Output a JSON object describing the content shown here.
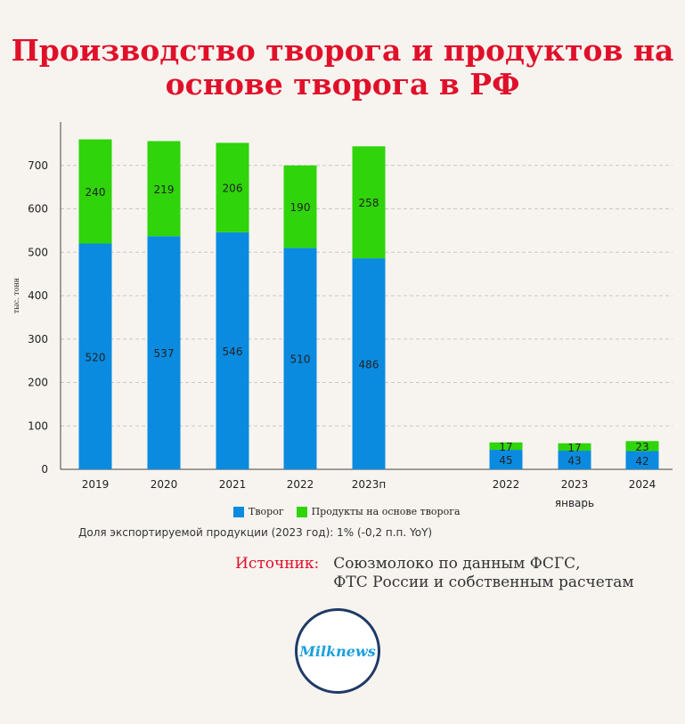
{
  "title": [
    "Производство творога и продуктов на",
    "основе творога в РФ"
  ],
  "colors": {
    "title": "#e0102a",
    "tvorog": "#0a8be0",
    "products": "#2fd40a",
    "grid": "#c8c8c8",
    "logo_ring": "#1f3a66",
    "logo_text": "#1aa0de"
  },
  "chart_data": {
    "type": "bar",
    "stacked": true,
    "ylabel": "тыс. тонн",
    "ylim": [
      0,
      800
    ],
    "yticks": [
      0,
      100,
      200,
      300,
      400,
      500,
      600,
      700
    ],
    "grid": true,
    "groups": [
      {
        "categories": [
          "2019",
          "2020",
          "2021",
          "2022",
          "2023п"
        ],
        "group_label": ""
      },
      {
        "categories": [
          "2022",
          "2023",
          "2024"
        ],
        "group_label": "январь"
      }
    ],
    "categories": [
      "2019",
      "2020",
      "2021",
      "2022",
      "2023п",
      "2022",
      "2023",
      "2024"
    ],
    "series": [
      {
        "name": "Творог",
        "values": [
          520,
          537,
          546,
          510,
          486,
          45,
          43,
          42
        ]
      },
      {
        "name": "Продукты на основе творога",
        "values": [
          240,
          219,
          206,
          190,
          258,
          17,
          17,
          23
        ]
      }
    ],
    "legend_position": "bottom"
  },
  "note": "Доля экспортируемой продукции (2023 год):  1% (-0,2 п.п. YoY)",
  "source": {
    "label": "Источник:",
    "lines": [
      "Союзмолоко по данным ФСГС,",
      "ФТС России и собственным расчетам"
    ]
  },
  "logo": {
    "text": "Milknews"
  }
}
